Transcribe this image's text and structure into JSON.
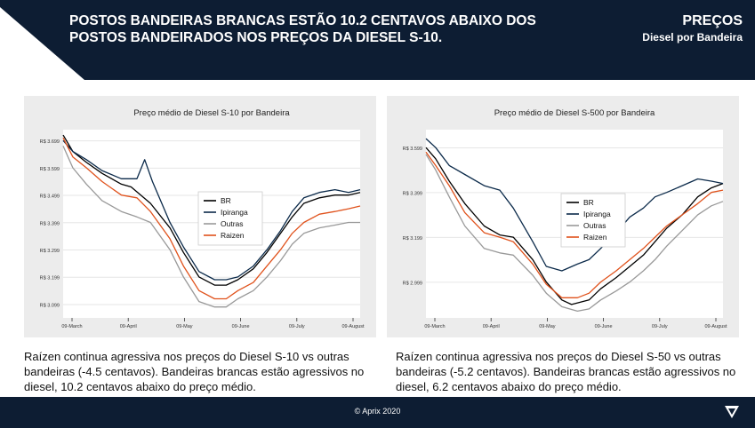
{
  "header": {
    "headline_line1": "POSTOS BANDEIRAS BRANCAS ESTÃO 10.2 CENTAVOS ABAIXO DOS",
    "headline_line2": "POSTOS BANDEIRADOS NOS PREÇOS DA DIESEL S-10.",
    "section_title": "PREÇOS",
    "section_subtitle": "Diesel por Bandeira"
  },
  "colors": {
    "navy": "#0d1d33",
    "panel_bg": "#ececec",
    "br": "#000000",
    "ipiranga": "#0b2a4a",
    "outras": "#999999",
    "raizen": "#e0521c"
  },
  "icons": {
    "footer_logo": "aprix-logo-icon"
  },
  "chart_data": [
    {
      "type": "line",
      "title": "Preço médio de Diesel S-10 por Bandeira",
      "xlabel": "",
      "ylabel": "",
      "x_ticks": [
        "09-March",
        "09-April",
        "09-May",
        "09-June",
        "09-July",
        "09-August"
      ],
      "y_ticks": [
        "R$ 3.699",
        "R$ 3.599",
        "R$ 3.499",
        "R$ 3.399",
        "R$ 3.299",
        "R$ 3.199",
        "R$ 3.099"
      ],
      "y_tick_values": [
        3.699,
        3.599,
        3.499,
        3.399,
        3.299,
        3.199,
        3.099
      ],
      "ylim": [
        3.05,
        3.74
      ],
      "grid": true,
      "legend_position": "center",
      "x_unit": "days since 09-March",
      "xlim": [
        0,
        153
      ],
      "series": [
        {
          "name": "BR",
          "color": "#000000",
          "values": [
            [
              0,
              3.72
            ],
            [
              5,
              3.66
            ],
            [
              12,
              3.62
            ],
            [
              20,
              3.58
            ],
            [
              30,
              3.54
            ],
            [
              35,
              3.53
            ],
            [
              45,
              3.47
            ],
            [
              55,
              3.38
            ],
            [
              62,
              3.29
            ],
            [
              70,
              3.2
            ],
            [
              78,
              3.17
            ],
            [
              84,
              3.17
            ],
            [
              90,
              3.19
            ],
            [
              98,
              3.23
            ],
            [
              105,
              3.29
            ],
            [
              112,
              3.36
            ],
            [
              118,
              3.42
            ],
            [
              124,
              3.47
            ],
            [
              132,
              3.49
            ],
            [
              140,
              3.5
            ],
            [
              147,
              3.5
            ],
            [
              153,
              3.51
            ]
          ]
        },
        {
          "name": "Ipiranga",
          "color": "#0b2a4a",
          "values": [
            [
              0,
              3.7
            ],
            [
              5,
              3.66
            ],
            [
              12,
              3.63
            ],
            [
              20,
              3.59
            ],
            [
              30,
              3.56
            ],
            [
              38,
              3.56
            ],
            [
              42,
              3.63
            ],
            [
              46,
              3.55
            ],
            [
              55,
              3.4
            ],
            [
              62,
              3.31
            ],
            [
              70,
              3.22
            ],
            [
              78,
              3.19
            ],
            [
              84,
              3.19
            ],
            [
              90,
              3.2
            ],
            [
              98,
              3.24
            ],
            [
              105,
              3.3
            ],
            [
              112,
              3.37
            ],
            [
              118,
              3.44
            ],
            [
              124,
              3.49
            ],
            [
              132,
              3.51
            ],
            [
              140,
              3.52
            ],
            [
              147,
              3.51
            ],
            [
              153,
              3.52
            ]
          ]
        },
        {
          "name": "Outras",
          "color": "#999999",
          "values": [
            [
              0,
              3.68
            ],
            [
              5,
              3.6
            ],
            [
              12,
              3.54
            ],
            [
              20,
              3.48
            ],
            [
              30,
              3.44
            ],
            [
              38,
              3.42
            ],
            [
              45,
              3.4
            ],
            [
              55,
              3.3
            ],
            [
              62,
              3.2
            ],
            [
              70,
              3.11
            ],
            [
              78,
              3.09
            ],
            [
              84,
              3.09
            ],
            [
              90,
              3.12
            ],
            [
              98,
              3.15
            ],
            [
              105,
              3.2
            ],
            [
              112,
              3.26
            ],
            [
              118,
              3.32
            ],
            [
              124,
              3.36
            ],
            [
              132,
              3.38
            ],
            [
              140,
              3.39
            ],
            [
              147,
              3.4
            ],
            [
              153,
              3.4
            ]
          ]
        },
        {
          "name": "Raizen",
          "color": "#e0521c",
          "values": [
            [
              0,
              3.71
            ],
            [
              5,
              3.64
            ],
            [
              12,
              3.6
            ],
            [
              20,
              3.55
            ],
            [
              30,
              3.5
            ],
            [
              38,
              3.49
            ],
            [
              45,
              3.44
            ],
            [
              55,
              3.34
            ],
            [
              62,
              3.24
            ],
            [
              70,
              3.15
            ],
            [
              78,
              3.12
            ],
            [
              84,
              3.12
            ],
            [
              90,
              3.15
            ],
            [
              98,
              3.18
            ],
            [
              105,
              3.24
            ],
            [
              112,
              3.3
            ],
            [
              118,
              3.36
            ],
            [
              124,
              3.4
            ],
            [
              132,
              3.43
            ],
            [
              140,
              3.44
            ],
            [
              147,
              3.45
            ],
            [
              153,
              3.46
            ]
          ]
        }
      ]
    },
    {
      "type": "line",
      "title": "Preço médio de Diesel S-500 por Bandeira",
      "xlabel": "",
      "ylabel": "",
      "x_ticks": [
        "09-March",
        "09-April",
        "09-May",
        "09-June",
        "09-July",
        "09-August"
      ],
      "y_ticks": [
        "R$ 3.599",
        "R$ 3.399",
        "R$ 3.199",
        "R$ 2.999"
      ],
      "y_tick_values": [
        3.599,
        3.399,
        3.199,
        2.999
      ],
      "ylim": [
        2.84,
        3.68
      ],
      "grid": true,
      "legend_position": "center",
      "x_unit": "days since 09-March",
      "xlim": [
        0,
        153
      ],
      "series": [
        {
          "name": "BR",
          "color": "#000000",
          "values": [
            [
              0,
              3.6
            ],
            [
              5,
              3.55
            ],
            [
              12,
              3.45
            ],
            [
              20,
              3.35
            ],
            [
              30,
              3.25
            ],
            [
              38,
              3.21
            ],
            [
              45,
              3.2
            ],
            [
              55,
              3.1
            ],
            [
              62,
              3.0
            ],
            [
              70,
              2.92
            ],
            [
              75,
              2.9
            ],
            [
              84,
              2.92
            ],
            [
              90,
              2.97
            ],
            [
              98,
              3.02
            ],
            [
              105,
              3.07
            ],
            [
              112,
              3.12
            ],
            [
              118,
              3.18
            ],
            [
              124,
              3.24
            ],
            [
              132,
              3.3
            ],
            [
              140,
              3.38
            ],
            [
              147,
              3.42
            ],
            [
              153,
              3.44
            ]
          ]
        },
        {
          "name": "Ipiranga",
          "color": "#0b2a4a",
          "values": [
            [
              0,
              3.64
            ],
            [
              5,
              3.6
            ],
            [
              12,
              3.52
            ],
            [
              20,
              3.48
            ],
            [
              30,
              3.43
            ],
            [
              38,
              3.41
            ],
            [
              45,
              3.33
            ],
            [
              55,
              3.18
            ],
            [
              62,
              3.07
            ],
            [
              70,
              3.05
            ],
            [
              78,
              3.08
            ],
            [
              84,
              3.1
            ],
            [
              90,
              3.15
            ],
            [
              98,
              3.22
            ],
            [
              105,
              3.29
            ],
            [
              112,
              3.33
            ],
            [
              118,
              3.38
            ],
            [
              124,
              3.4
            ],
            [
              132,
              3.43
            ],
            [
              140,
              3.46
            ],
            [
              147,
              3.45
            ],
            [
              153,
              3.44
            ]
          ]
        },
        {
          "name": "Outras",
          "color": "#999999",
          "values": [
            [
              0,
              3.57
            ],
            [
              5,
              3.5
            ],
            [
              12,
              3.38
            ],
            [
              20,
              3.25
            ],
            [
              30,
              3.15
            ],
            [
              38,
              3.13
            ],
            [
              45,
              3.12
            ],
            [
              55,
              3.03
            ],
            [
              62,
              2.95
            ],
            [
              70,
              2.89
            ],
            [
              78,
              2.87
            ],
            [
              84,
              2.88
            ],
            [
              90,
              2.92
            ],
            [
              98,
              2.96
            ],
            [
              105,
              3.0
            ],
            [
              112,
              3.05
            ],
            [
              118,
              3.1
            ],
            [
              124,
              3.16
            ],
            [
              132,
              3.23
            ],
            [
              140,
              3.3
            ],
            [
              147,
              3.34
            ],
            [
              153,
              3.36
            ]
          ]
        },
        {
          "name": "Raizen",
          "color": "#e0521c",
          "values": [
            [
              0,
              3.58
            ],
            [
              5,
              3.52
            ],
            [
              12,
              3.43
            ],
            [
              20,
              3.31
            ],
            [
              30,
              3.22
            ],
            [
              38,
              3.2
            ],
            [
              45,
              3.18
            ],
            [
              55,
              3.08
            ],
            [
              62,
              2.99
            ],
            [
              70,
              2.93
            ],
            [
              78,
              2.93
            ],
            [
              84,
              2.95
            ],
            [
              90,
              3.0
            ],
            [
              98,
              3.05
            ],
            [
              105,
              3.1
            ],
            [
              112,
              3.15
            ],
            [
              118,
              3.2
            ],
            [
              124,
              3.25
            ],
            [
              132,
              3.3
            ],
            [
              140,
              3.35
            ],
            [
              147,
              3.4
            ],
            [
              153,
              3.41
            ]
          ]
        }
      ]
    }
  ],
  "captions": {
    "left": "Raízen continua agressiva nos preços do Diesel S-10 vs outras bandeiras (-4.5 centavos). Bandeiras brancas estão agressivos no diesel, 10.2 centavos abaixo do preço médio.",
    "right": "Raízen continua agressiva nos preços do Diesel S-50 vs outras bandeiras (-5.2 centavos). Bandeiras brancas estão agressivos no diesel, 6.2 centavos abaixo do preço médio."
  },
  "footer": {
    "copyright": "© Aprix 2020"
  }
}
